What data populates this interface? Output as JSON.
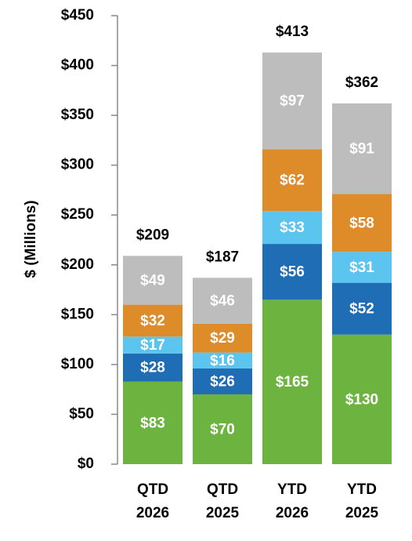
{
  "chart_data": {
    "type": "stacked_bar",
    "y_label": "$ (Millions)",
    "categories": [
      "QTD 2026",
      "QTD 2025",
      "YTD 2026",
      "YTD 2025"
    ],
    "series": [
      {
        "color": "#6db33f",
        "values": [
          83,
          70,
          165,
          130
        ],
        "value_labels": [
          "$83",
          "$70",
          "$165",
          "$130"
        ]
      },
      {
        "color": "#1f6db5",
        "values": [
          28,
          26,
          56,
          52
        ],
        "value_labels": [
          "$28",
          "$26",
          "$56",
          "$52"
        ]
      },
      {
        "color": "#5bc4ef",
        "values": [
          17,
          16,
          33,
          31
        ],
        "value_labels": [
          "$17",
          "$16",
          "$33",
          "$31"
        ]
      },
      {
        "color": "#de8b2a",
        "values": [
          32,
          29,
          62,
          58
        ],
        "value_labels": [
          "$32",
          "$29",
          "$62",
          "$58"
        ]
      },
      {
        "color": "#bdbdbd",
        "values": [
          49,
          46,
          97,
          91
        ],
        "value_labels": [
          "$49",
          "$46",
          "$97",
          "$91"
        ]
      }
    ],
    "totals": [
      209,
      187,
      413,
      362
    ],
    "total_labels": [
      "$209",
      "$187",
      "$413",
      "$362"
    ],
    "ylim": [
      0,
      450
    ],
    "yticks": [
      {
        "value": 0,
        "label": "$0"
      },
      {
        "value": 50,
        "label": "$50"
      },
      {
        "value": 100,
        "label": "$100"
      },
      {
        "value": 150,
        "label": "$150"
      },
      {
        "value": 200,
        "label": "$200"
      },
      {
        "value": 250,
        "label": "$250"
      },
      {
        "value": 300,
        "label": "$300"
      },
      {
        "value": 350,
        "label": "$350"
      },
      {
        "value": 400,
        "label": "$400"
      },
      {
        "value": 450,
        "label": "$450"
      }
    ]
  }
}
